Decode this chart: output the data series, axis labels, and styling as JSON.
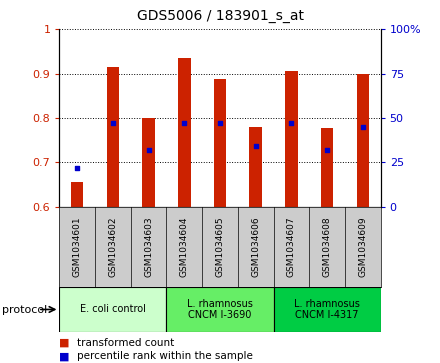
{
  "title": "GDS5006 / 183901_s_at",
  "samples": [
    "GSM1034601",
    "GSM1034602",
    "GSM1034603",
    "GSM1034604",
    "GSM1034605",
    "GSM1034606",
    "GSM1034607",
    "GSM1034608",
    "GSM1034609"
  ],
  "transformed_counts": [
    0.655,
    0.915,
    0.8,
    0.935,
    0.888,
    0.78,
    0.905,
    0.778,
    0.898
  ],
  "percentile_ranks": [
    22,
    47,
    32,
    47,
    47,
    34,
    47,
    32,
    45
  ],
  "ylim_left": [
    0.6,
    1.0
  ],
  "ylim_right": [
    0,
    100
  ],
  "yticks_left": [
    0.6,
    0.7,
    0.8,
    0.9,
    1.0
  ],
  "ytick_labels_left": [
    "0.6",
    "0.7",
    "0.8",
    "0.9",
    "1"
  ],
  "yticks_right": [
    0,
    25,
    50,
    75,
    100
  ],
  "ytick_labels_right": [
    "0",
    "25",
    "50",
    "75",
    "100%"
  ],
  "bar_color": "#cc2200",
  "dot_color": "#0000cc",
  "proto_colors": [
    "#ccffcc",
    "#66ee66",
    "#00cc44"
  ],
  "proto_labels": [
    "E. coli control",
    "L. rhamnosus\nCNCM I-3690",
    "L. rhamnosus\nCNCM I-4317"
  ],
  "proto_ranges": [
    [
      0,
      3
    ],
    [
      3,
      6
    ],
    [
      6,
      9
    ]
  ],
  "legend_labels": [
    "transformed count",
    "percentile rank within the sample"
  ],
  "legend_colors": [
    "#cc2200",
    "#0000cc"
  ],
  "grid_color": "black",
  "background_color": "white",
  "sample_bg_color": "#cccccc",
  "bar_width": 0.35,
  "title_fontsize": 10
}
